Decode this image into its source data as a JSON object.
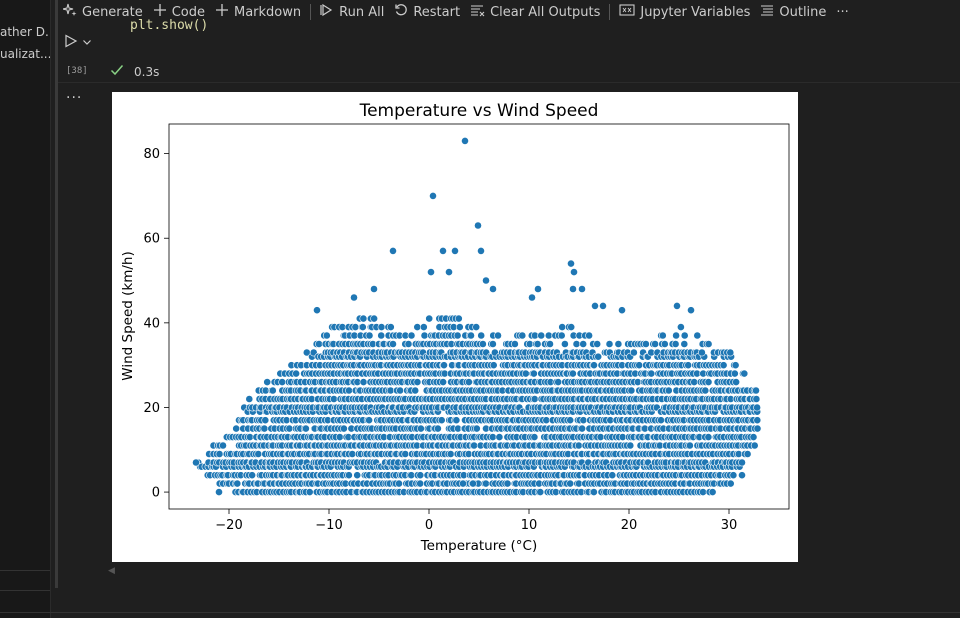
{
  "toolbar": {
    "generate": "Generate",
    "code": "Code",
    "markdown": "Markdown",
    "run_all": "Run All",
    "restart": "Restart",
    "clear_all_outputs": "Clear All Outputs",
    "jupyter_variables": "Jupyter Variables",
    "outline": "Outline",
    "more": "···"
  },
  "left_panel": {
    "items": [
      "ather D...",
      "ualizat..."
    ]
  },
  "cell": {
    "code_line": "plt.show()",
    "execution_count": "[38]",
    "duration": "0.3s",
    "output_more": "···"
  },
  "chart_data": {
    "type": "scatter",
    "title": "Temperature vs Wind Speed",
    "xlabel": "Temperature (°C)",
    "ylabel": "Wind Speed (km/h)",
    "xlim": [
      -26,
      36
    ],
    "ylim": [
      -4,
      87
    ],
    "xticks": [
      -20,
      -10,
      0,
      10,
      20,
      30
    ],
    "yticks": [
      0,
      20,
      40,
      60,
      80
    ],
    "color": "#1f77b4",
    "outliers": [
      {
        "x": 3.6,
        "y": 83
      },
      {
        "x": 0.4,
        "y": 70
      },
      {
        "x": 4.9,
        "y": 63
      },
      {
        "x": -3.6,
        "y": 57
      },
      {
        "x": 1.4,
        "y": 57
      },
      {
        "x": 2.6,
        "y": 57
      },
      {
        "x": 5.2,
        "y": 57
      },
      {
        "x": 14.2,
        "y": 54
      },
      {
        "x": 14.5,
        "y": 52
      },
      {
        "x": 0.2,
        "y": 52
      },
      {
        "x": 2.0,
        "y": 52
      },
      {
        "x": 5.7,
        "y": 50
      },
      {
        "x": 6.4,
        "y": 48
      },
      {
        "x": 10.9,
        "y": 48
      },
      {
        "x": 14.4,
        "y": 48
      },
      {
        "x": 15.3,
        "y": 48
      },
      {
        "x": -5.5,
        "y": 48
      },
      {
        "x": -7.5,
        "y": 46
      },
      {
        "x": 10.3,
        "y": 46
      },
      {
        "x": 16.6,
        "y": 44
      },
      {
        "x": 17.4,
        "y": 44
      },
      {
        "x": 24.8,
        "y": 44
      },
      {
        "x": 26.2,
        "y": 43
      },
      {
        "x": 19.3,
        "y": 43
      },
      {
        "x": -11.2,
        "y": 43
      },
      {
        "x": 3.4,
        "y": 2
      },
      {
        "x": 4.4,
        "y": 2
      },
      {
        "x": -21.0,
        "y": 0
      },
      {
        "x": -23.3,
        "y": 7
      },
      {
        "x": 31.3,
        "y": 4
      }
    ],
    "cluster": {
      "x_range": [
        -23,
        33
      ],
      "y_values": [
        0,
        2,
        4,
        6,
        7,
        9,
        11,
        13,
        15,
        17,
        19,
        20,
        22,
        24,
        26,
        28,
        30,
        32,
        33,
        35,
        37,
        39,
        41
      ],
      "x_step": 0.3,
      "envelope": [
        {
          "x": -23,
          "y": 9
        },
        {
          "x": -20,
          "y": 13
        },
        {
          "x": -18,
          "y": 22
        },
        {
          "x": -16,
          "y": 26
        },
        {
          "x": -14,
          "y": 30
        },
        {
          "x": -12,
          "y": 33
        },
        {
          "x": -10,
          "y": 39
        },
        {
          "x": -6,
          "y": 41
        },
        {
          "x": -2,
          "y": 37
        },
        {
          "x": 0,
          "y": 41
        },
        {
          "x": 3,
          "y": 41
        },
        {
          "x": 6,
          "y": 37
        },
        {
          "x": 10,
          "y": 37
        },
        {
          "x": 14,
          "y": 39
        },
        {
          "x": 18,
          "y": 35
        },
        {
          "x": 22,
          "y": 35
        },
        {
          "x": 25,
          "y": 39
        },
        {
          "x": 28,
          "y": 35
        },
        {
          "x": 30,
          "y": 33
        },
        {
          "x": 31,
          "y": 30
        },
        {
          "x": 33,
          "y": 24
        }
      ],
      "floor": [
        {
          "x": -23,
          "y": 6
        },
        {
          "x": -21,
          "y": 2
        },
        {
          "x": -19,
          "y": 0
        },
        {
          "x": 28,
          "y": 0
        },
        {
          "x": 30,
          "y": 2
        },
        {
          "x": 31,
          "y": 6
        },
        {
          "x": 33,
          "y": 13
        }
      ]
    }
  }
}
